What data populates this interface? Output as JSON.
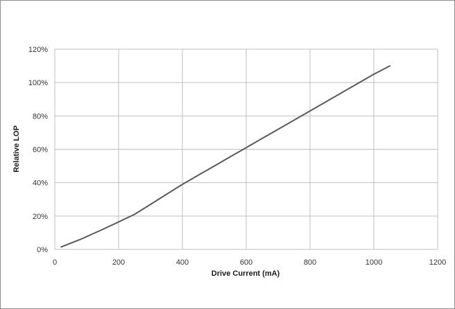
{
  "chart_data": {
    "type": "line",
    "title": "",
    "xlabel": "Drive Current (mA)",
    "ylabel": "Relative LOP",
    "xlim": [
      0,
      1200
    ],
    "ylim": [
      0,
      120
    ],
    "x_ticks": [
      0,
      200,
      400,
      600,
      800,
      1000,
      1200
    ],
    "y_ticks": [
      0,
      20,
      40,
      60,
      80,
      100,
      120
    ],
    "x_tick_labels": [
      "0",
      "200",
      "400",
      "600",
      "800",
      "1000",
      "1200"
    ],
    "y_tick_labels": [
      "0%",
      "20%",
      "40%",
      "60%",
      "80%",
      "100%",
      "120%"
    ],
    "grid": true,
    "legend": "none",
    "series": [
      {
        "color": "#595959",
        "x": [
          20,
          80,
          150,
          200,
          250,
          300,
          350,
          400,
          450,
          500,
          550,
          600,
          650,
          700,
          750,
          800,
          850,
          900,
          950,
          1000,
          1050
        ],
        "y": [
          1.5,
          6,
          12,
          16.5,
          21,
          27,
          33,
          39,
          44.5,
          50,
          55.5,
          61,
          66.5,
          72,
          77.5,
          83,
          88.5,
          94,
          99.5,
          105,
          110
        ]
      }
    ]
  }
}
